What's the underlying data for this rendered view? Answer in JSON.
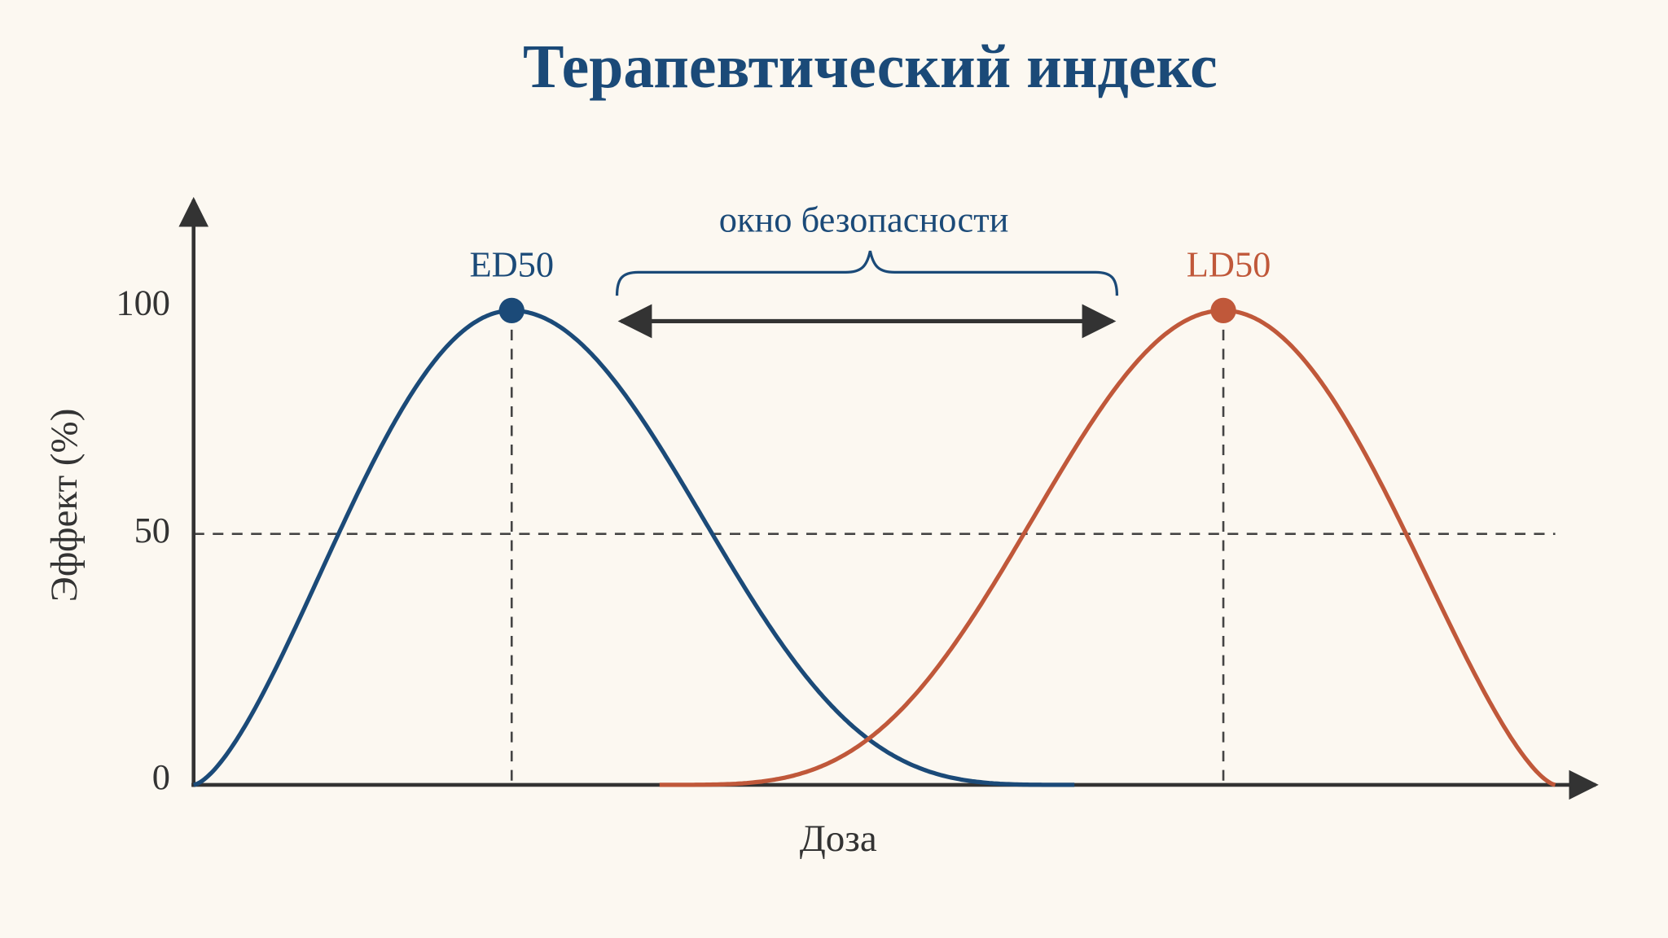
{
  "title": "Терапевтический индекс",
  "y_axis": {
    "label": "Эффект (%)",
    "ticks": [
      "0",
      "50",
      "100"
    ]
  },
  "x_axis": {
    "label": "Доза"
  },
  "annotations": {
    "ed50": "ED50",
    "ld50": "LD50",
    "window": "окно безопасности"
  }
}
